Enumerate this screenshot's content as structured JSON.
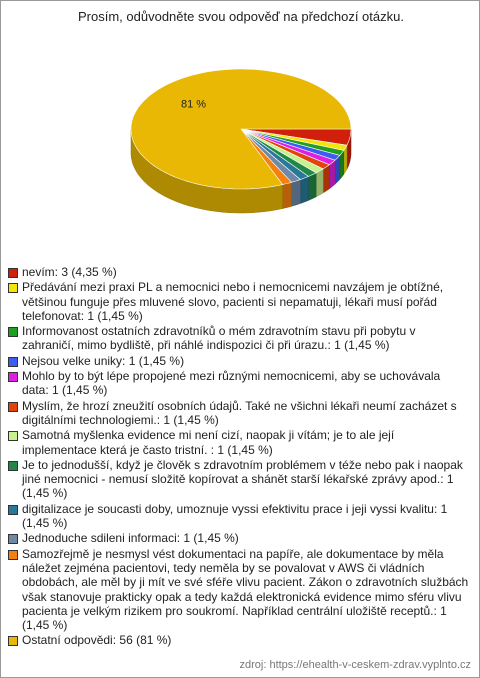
{
  "chart_data": {
    "type": "pie",
    "title": "Prosím, odůvodněte svou odpověď na předchozí otázku.",
    "categories": [
      "nevím: 3 (4,35 %)",
      "Předávání mezi praxi PL a nemocnici nebo i nemocnicemi navzájem je obtížné, většinou funguje přes mluvené slovo, pacienti si nepamatuji, lékaři musí pořád telefonovat: 1 (1,45 %)",
      "Informovanost ostatních zdravotníků o mém zdravotním stavu při pobytu v zahraničí, mimo bydliště, při náhlé indispozici či při úrazu.: 1 (1,45 %)",
      "Nejsou velke uniky: 1 (1,45 %)",
      "Mohlo by to být lépe propojené mezi různými nemocnicemi, aby se uchovávala data: 1 (1,45 %)",
      "Myslím, že hrozí zneužití osobních údajů. Také ne všichni lékaři neumí zacházet s digitálními technologiemi.: 1 (1,45 %)",
      "Samotná myšlenka evidence mi není cizí, naopak ji vítám; je to ale její implementace která je často tristní. : 1 (1,45 %)",
      "Je to jednodušší, když je člověk s zdravotním problémem v téže nebo pak i naopak jiné nemocnici - nemusí složitě kopírovat a shánět starší lékařské zprávy apod.: 1 (1,45 %)",
      "digitalizace je soucasti doby, umoznuje vyssi efektivitu prace i jeji vyssi kvalitu: 1 (1,45 %)",
      "Jednoduche sdileni informaci: 1 (1,45 %)",
      "Samozřejmě je nesmysl vést dokumentaci na papíře, ale dokumentace by měla náležet zejména pacientovi, tedy neměla by se povalovat v AWS či vládních obdobách, ale měl by ji mít ve své sféře vlivu pacient. Zákon o zdravotních službách však stanovuje prakticky opak a tedy každá elektronická evidence mimo sféru vlivu pacienta je velkým rizikem pro soukromí. Například centrální uložiště receptů.: 1 (1,45 %)",
      "Ostatní odpovědi: 56 (81 %)"
    ],
    "values": [
      3,
      1,
      1,
      1,
      1,
      1,
      1,
      1,
      1,
      1,
      1,
      56
    ],
    "value_labels": [
      null,
      null,
      null,
      null,
      null,
      null,
      null,
      null,
      null,
      null,
      null,
      "81 %"
    ],
    "colors": [
      "#d0200c",
      "#f4e40c",
      "#20a020",
      "#3c5cf4",
      "#e020e0",
      "#e0440c",
      "#c8f08c",
      "#208848",
      "#287898",
      "#7088a8",
      "#f48010",
      "#e8b804"
    ],
    "source": "zdroj: https://ehealth-v-ceskem-zdrav.vyplnto.cz"
  }
}
